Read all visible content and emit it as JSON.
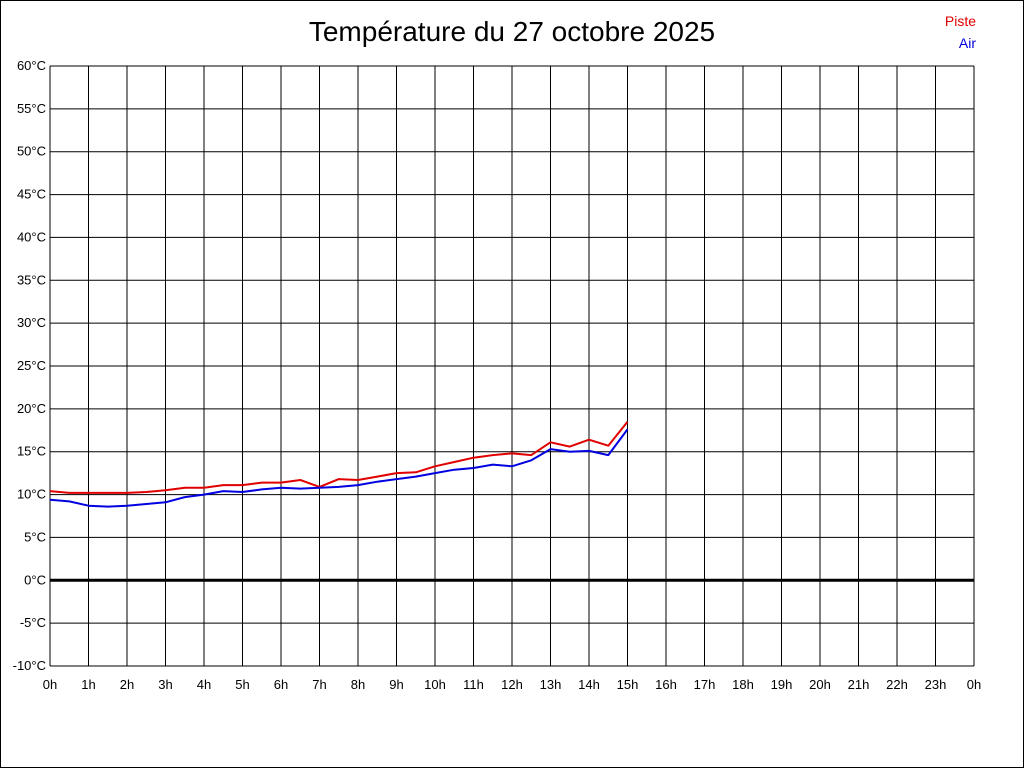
{
  "chart_data": {
    "type": "line",
    "title": "Température du 27 octobre 2025",
    "legend_position": "top-right",
    "grid": true,
    "xlim": [
      0,
      24
    ],
    "ylim": [
      -10,
      60
    ],
    "x_tick_labels": [
      "0h",
      "1h",
      "2h",
      "3h",
      "4h",
      "5h",
      "6h",
      "7h",
      "8h",
      "9h",
      "10h",
      "11h",
      "12h",
      "13h",
      "14h",
      "15h",
      "16h",
      "17h",
      "18h",
      "19h",
      "20h",
      "21h",
      "22h",
      "23h",
      "0h"
    ],
    "y_tick_labels": [
      "-10°C",
      "-5°C",
      "0°C",
      "5°C",
      "10°C",
      "15°C",
      "20°C",
      "25°C",
      "30°C",
      "35°C",
      "40°C",
      "45°C",
      "50°C",
      "55°C",
      "60°C"
    ],
    "x": [
      0,
      0.5,
      1,
      1.5,
      2,
      2.5,
      3,
      3.5,
      4,
      4.5,
      5,
      5.5,
      6,
      6.5,
      7,
      7.5,
      8,
      8.5,
      9,
      9.5,
      10,
      10.5,
      11,
      11.5,
      12,
      12.5,
      13,
      13.5,
      14,
      14.5,
      15
    ],
    "series": [
      {
        "name": "Piste",
        "color": "#e00000",
        "values": [
          10.4,
          10.2,
          10.2,
          10.2,
          10.2,
          10.3,
          10.5,
          10.8,
          10.8,
          11.1,
          11.1,
          11.4,
          11.4,
          11.7,
          10.9,
          11.8,
          11.7,
          12.1,
          12.5,
          12.6,
          13.3,
          13.8,
          14.3,
          14.6,
          14.8,
          14.6,
          16.1,
          15.6,
          16.4,
          15.7,
          18.5
        ]
      },
      {
        "name": "Air",
        "color": "#0000e0",
        "values": [
          9.4,
          9.2,
          8.7,
          8.6,
          8.7,
          8.9,
          9.1,
          9.7,
          10.0,
          10.4,
          10.3,
          10.6,
          10.8,
          10.7,
          10.8,
          10.9,
          11.1,
          11.5,
          11.8,
          12.1,
          12.5,
          12.9,
          13.1,
          13.5,
          13.3,
          14.0,
          15.3,
          15.0,
          15.1,
          14.6,
          17.6
        ]
      }
    ]
  }
}
